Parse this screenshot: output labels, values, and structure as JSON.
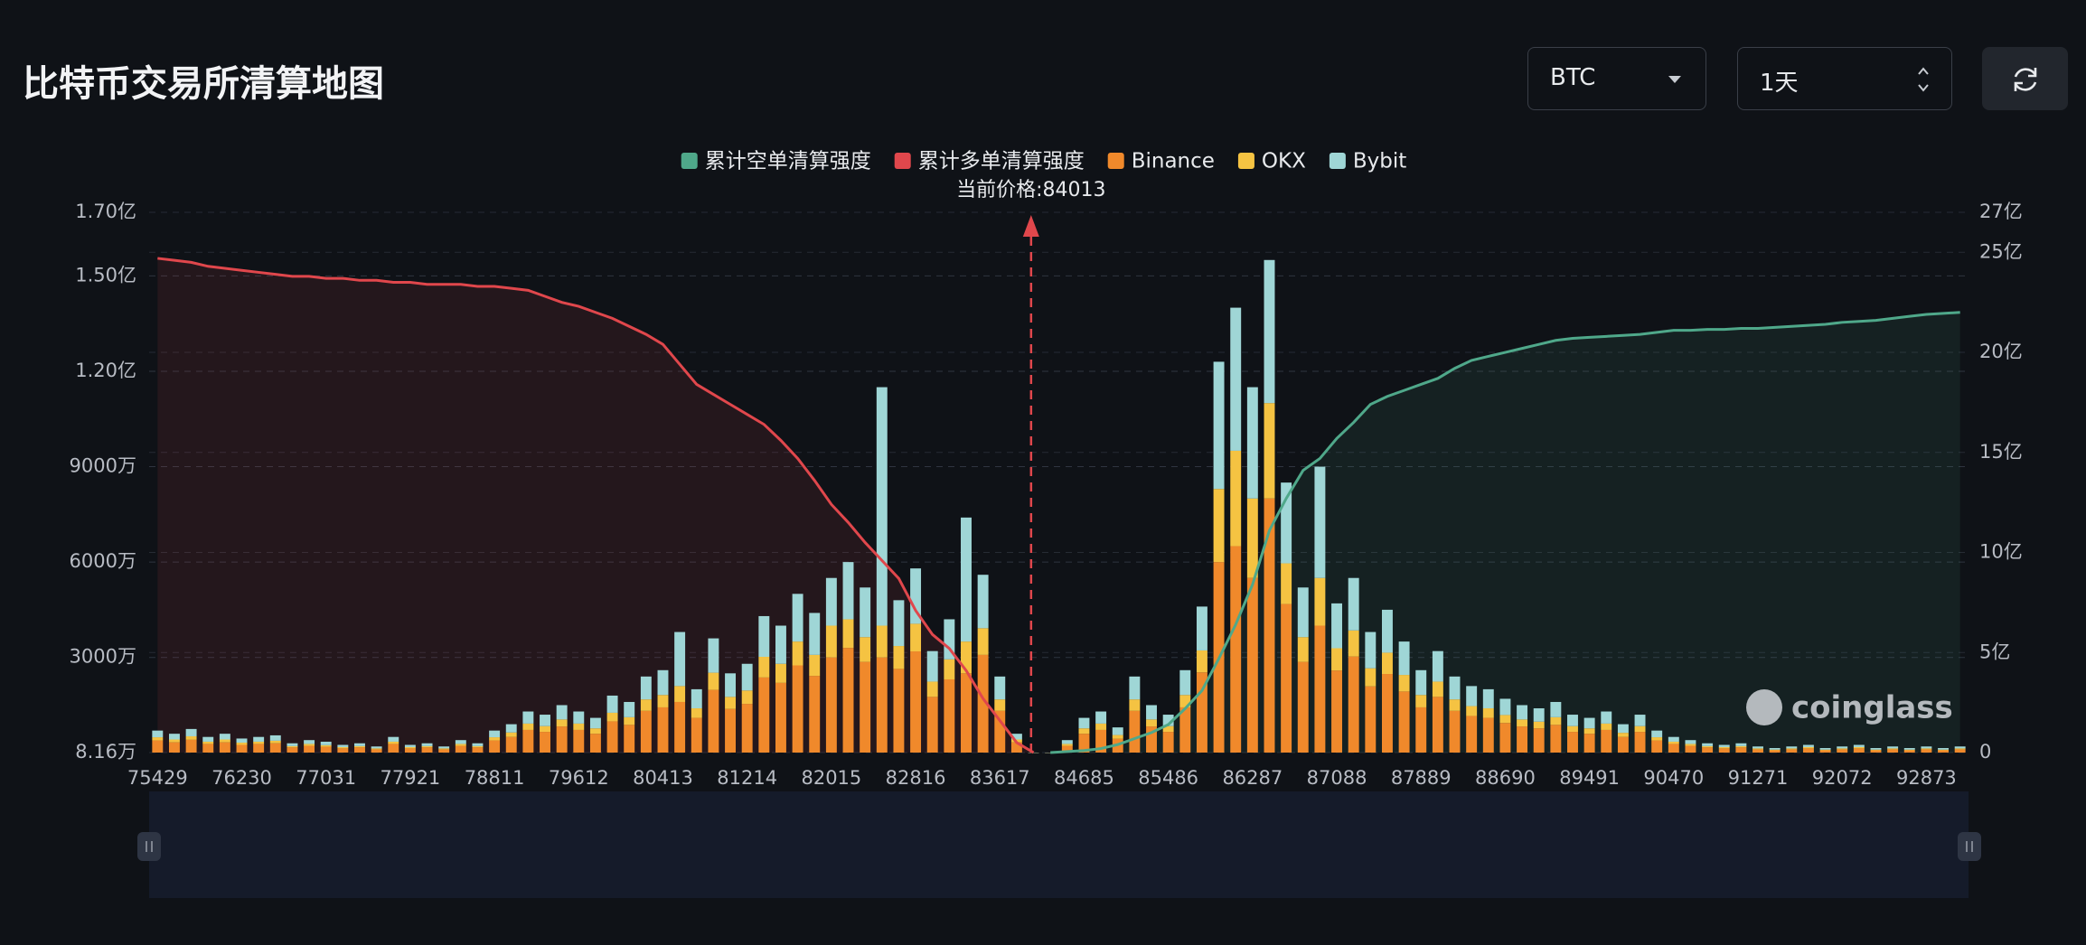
{
  "header": {
    "title": "比特币交易所清算地图"
  },
  "controls": {
    "symbol": "BTC",
    "period": "1天"
  },
  "chart_data": {
    "type": "bar",
    "watermark": "coinglass",
    "current_price": {
      "value": 84013,
      "label": "当前价格:84013"
    },
    "categories": [
      "75429",
      null,
      null,
      null,
      null,
      "76230",
      null,
      null,
      null,
      null,
      "77031",
      null,
      null,
      null,
      null,
      "77921",
      null,
      null,
      null,
      null,
      "78811",
      null,
      null,
      null,
      null,
      "79612",
      null,
      null,
      null,
      null,
      "80413",
      null,
      null,
      null,
      null,
      "81214",
      null,
      null,
      null,
      null,
      "82015",
      null,
      null,
      null,
      null,
      "82816",
      null,
      null,
      null,
      null,
      "83617",
      null,
      null,
      null,
      null,
      "84685",
      null,
      null,
      null,
      null,
      "85486",
      null,
      null,
      null,
      null,
      "86287",
      null,
      null,
      null,
      null,
      "87088",
      null,
      null,
      null,
      null,
      "87889",
      null,
      null,
      null,
      null,
      "88690",
      null,
      null,
      null,
      null,
      "89491",
      null,
      null,
      null,
      null,
      "90470",
      null,
      null,
      null,
      null,
      "91271",
      null,
      null,
      null,
      null,
      "92072",
      null,
      null,
      null,
      null,
      "92873",
      null,
      null
    ],
    "ylim": [
      8.16,
      17000
    ],
    "yticks": [
      {
        "value": 8.16,
        "label": "8.16万"
      },
      {
        "value": 3000,
        "label": "3000万"
      },
      {
        "value": 6000,
        "label": "6000万"
      },
      {
        "value": 9000,
        "label": "9000万"
      },
      {
        "value": 12000,
        "label": "1.20亿"
      },
      {
        "value": 15000,
        "label": "1.50亿"
      },
      {
        "value": 17000,
        "label": "1.70亿"
      }
    ],
    "y2lim": [
      0,
      27
    ],
    "y2ticks": [
      0,
      {
        "value": 5,
        "label": "5亿"
      },
      {
        "value": 10,
        "label": "10亿"
      },
      {
        "value": 15,
        "label": "15亿"
      },
      {
        "value": 20,
        "label": "20亿"
      },
      {
        "value": 25,
        "label": "25亿"
      },
      {
        "value": 27,
        "label": "27亿"
      }
    ],
    "grid": true,
    "series": [
      {
        "name": "累计空单清算强度",
        "type": "line",
        "axis": "y2",
        "color": "#4fa88a",
        "values": [
          null,
          null,
          null,
          null,
          null,
          null,
          null,
          null,
          null,
          null,
          null,
          null,
          null,
          null,
          null,
          null,
          null,
          null,
          null,
          null,
          null,
          null,
          null,
          null,
          null,
          null,
          null,
          null,
          null,
          null,
          null,
          null,
          null,
          null,
          null,
          null,
          null,
          null,
          null,
          null,
          null,
          null,
          null,
          null,
          null,
          null,
          null,
          null,
          null,
          null,
          null,
          null,
          null,
          0,
          0.05,
          0.1,
          0.2,
          0.4,
          0.7,
          1.0,
          1.4,
          2.2,
          3.1,
          4.7,
          6.4,
          8.4,
          11.1,
          12.7,
          14.1,
          14.7,
          15.7,
          16.5,
          17.4,
          17.8,
          18.1,
          18.4,
          18.7,
          19.2,
          19.6,
          19.8,
          20.0,
          20.2,
          20.4,
          20.6,
          20.7,
          20.75,
          20.8,
          20.85,
          20.9,
          21.0,
          21.1,
          21.1,
          21.15,
          21.15,
          21.2,
          21.2,
          21.25,
          21.3,
          21.35,
          21.4,
          21.5,
          21.55,
          21.6,
          21.7,
          21.8,
          21.9,
          21.95,
          22.0
        ]
      },
      {
        "name": "累计多单清算强度",
        "type": "line",
        "axis": "y2",
        "color": "#e0474c",
        "values": [
          24.7,
          24.6,
          24.5,
          24.3,
          24.2,
          24.1,
          24.0,
          23.9,
          23.8,
          23.8,
          23.7,
          23.7,
          23.6,
          23.6,
          23.5,
          23.5,
          23.4,
          23.4,
          23.4,
          23.3,
          23.3,
          23.2,
          23.1,
          22.8,
          22.5,
          22.3,
          22.0,
          21.7,
          21.3,
          20.9,
          20.4,
          19.4,
          18.4,
          17.9,
          17.4,
          16.9,
          16.4,
          15.6,
          14.7,
          13.6,
          12.4,
          11.5,
          10.5,
          9.6,
          8.7,
          7.1,
          5.9,
          5.2,
          4.1,
          2.7,
          1.6,
          0.5,
          0,
          null,
          null,
          null,
          null,
          null,
          null,
          null,
          null,
          null,
          null,
          null,
          null,
          null,
          null,
          null,
          null,
          null,
          null,
          null,
          null,
          null,
          null,
          null,
          null,
          null,
          null,
          null,
          null,
          null,
          null,
          null,
          null,
          null,
          null,
          null,
          null,
          null,
          null,
          null,
          null,
          null,
          null,
          null,
          null,
          null,
          null,
          null,
          null,
          null,
          null,
          null,
          null,
          null,
          null,
          null
        ]
      },
      {
        "name": "Binance",
        "type": "bar",
        "color": "#f0892b",
        "values": [
          390,
          330,
          410,
          280,
          330,
          250,
          280,
          300,
          170,
          220,
          190,
          140,
          170,
          110,
          280,
          140,
          170,
          110,
          220,
          170,
          390,
          500,
          720,
          660,
          830,
          720,
          600,
          990,
          880,
          1320,
          1430,
          1600,
          1100,
          1980,
          1380,
          1540,
          2370,
          2200,
          2750,
          2420,
          3000,
          3300,
          2860,
          3000,
          2640,
          3190,
          1760,
          2310,
          2500,
          3080,
          1320,
          330,
          0,
          0,
          220,
          600,
          720,
          440,
          1320,
          830,
          660,
          1430,
          2530,
          6000,
          6500,
          5500,
          8000,
          4680,
          2860,
          4000,
          2590,
          3030,
          2090,
          2480,
          1930,
          1430,
          1760,
          1320,
          1160,
          1100,
          940,
          830,
          770,
          880,
          660,
          600,
          720,
          500,
          660,
          390,
          280,
          220,
          170,
          140,
          170,
          110,
          80,
          110,
          140,
          80,
          110,
          140,
          80,
          110,
          80,
          110,
          80,
          110
        ]
      },
      {
        "name": "OKX",
        "type": "bar",
        "color": "#f5c342",
        "values": [
          100,
          90,
          110,
          70,
          90,
          70,
          70,
          80,
          40,
          60,
          50,
          40,
          40,
          30,
          70,
          40,
          40,
          30,
          60,
          40,
          100,
          140,
          200,
          180,
          220,
          200,
          170,
          270,
          240,
          360,
          390,
          500,
          300,
          540,
          380,
          420,
          650,
          600,
          750,
          660,
          1000,
          900,
          780,
          1000,
          720,
          870,
          480,
          630,
          1000,
          840,
          360,
          90,
          0,
          0,
          60,
          170,
          200,
          120,
          360,
          220,
          180,
          390,
          690,
          2300,
          3000,
          2500,
          3000,
          1280,
          780,
          1500,
          700,
          820,
          570,
          670,
          520,
          390,
          480,
          360,
          310,
          300,
          250,
          220,
          210,
          240,
          180,
          170,
          200,
          130,
          180,
          100,
          70,
          60,
          40,
          40,
          40,
          30,
          20,
          30,
          40,
          20,
          30,
          40,
          20,
          30,
          20,
          30,
          20,
          30
        ]
      },
      {
        "name": "Bybit",
        "type": "bar",
        "color": "#9fd6d6",
        "values": [
          210,
          180,
          230,
          150,
          180,
          130,
          150,
          170,
          90,
          120,
          110,
          70,
          90,
          60,
          150,
          70,
          90,
          60,
          120,
          90,
          210,
          260,
          380,
          360,
          450,
          380,
          330,
          540,
          480,
          720,
          780,
          1700,
          600,
          1080,
          740,
          840,
          1280,
          1200,
          1500,
          1320,
          1500,
          1800,
          1560,
          7500,
          1440,
          1740,
          960,
          1260,
          3900,
          1680,
          720,
          180,
          0,
          0,
          120,
          330,
          380,
          240,
          720,
          450,
          360,
          780,
          1380,
          4000,
          4500,
          3500,
          4500,
          2540,
          1560,
          3500,
          1410,
          1650,
          1140,
          1350,
          1050,
          780,
          960,
          720,
          630,
          600,
          510,
          450,
          420,
          480,
          360,
          330,
          380,
          270,
          360,
          210,
          150,
          120,
          90,
          70,
          90,
          60,
          50,
          60,
          70,
          50,
          60,
          70,
          50,
          60,
          50,
          60,
          50,
          60
        ]
      }
    ]
  }
}
